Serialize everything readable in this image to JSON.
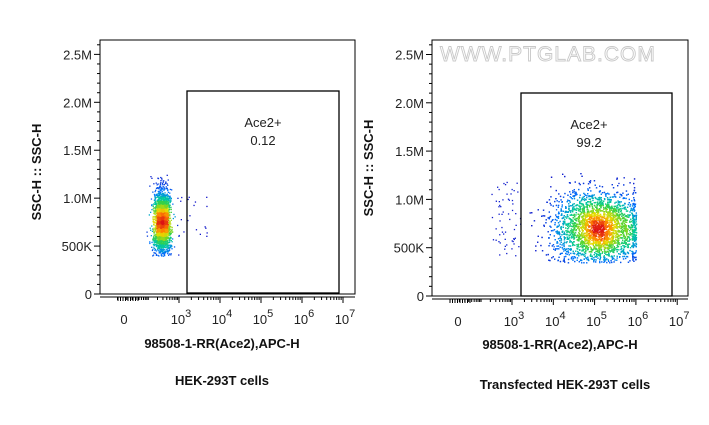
{
  "watermark": "WWW.PTGLAB.COM",
  "chart_data": [
    {
      "type": "scatter",
      "caption": "HEK-293T cells",
      "xlabel": "98508-1-RR(Ace2),APC-H",
      "ylabel": "SSC-H :: SSC-H",
      "x_scale": "biexponential",
      "x_ticks": [
        "0",
        "10^3",
        "10^4",
        "10^5",
        "10^6",
        "10^7"
      ],
      "y_ticks": [
        "0",
        "500K",
        "1.0M",
        "1.5M",
        "2.0M",
        "2.5M"
      ],
      "ylim": [
        0,
        2650000
      ],
      "gate": {
        "name": "Ace2+",
        "value": "0.12",
        "x_range": [
          1000,
          7000000
        ],
        "y_range": [
          0,
          2100000
        ]
      },
      "population": {
        "x_center": 270,
        "y_center": 750000,
        "y_range": [
          400000,
          1250000
        ]
      },
      "color_scale": "density (blue-green-yellow-red)"
    },
    {
      "type": "scatter",
      "caption": "Transfected HEK-293T cells",
      "xlabel": "98508-1-RR(Ace2),APC-H",
      "ylabel": "SSC-H :: SSC-H",
      "x_scale": "biexponential",
      "x_ticks": [
        "0",
        "10^3",
        "10^4",
        "10^5",
        "10^6",
        "10^7"
      ],
      "y_ticks": [
        "0",
        "500K",
        "1.0M",
        "1.5M",
        "2.0M",
        "2.5M"
      ],
      "ylim": [
        0,
        2650000
      ],
      "gate": {
        "name": "Ace2+",
        "value": "99.2",
        "x_range": [
          1000,
          7000000
        ],
        "y_range": [
          0,
          2100000
        ]
      },
      "population": {
        "x_center": 120000,
        "y_center": 700000,
        "y_range": [
          350000,
          1300000
        ]
      },
      "color_scale": "density (blue-green-yellow-red)"
    }
  ]
}
